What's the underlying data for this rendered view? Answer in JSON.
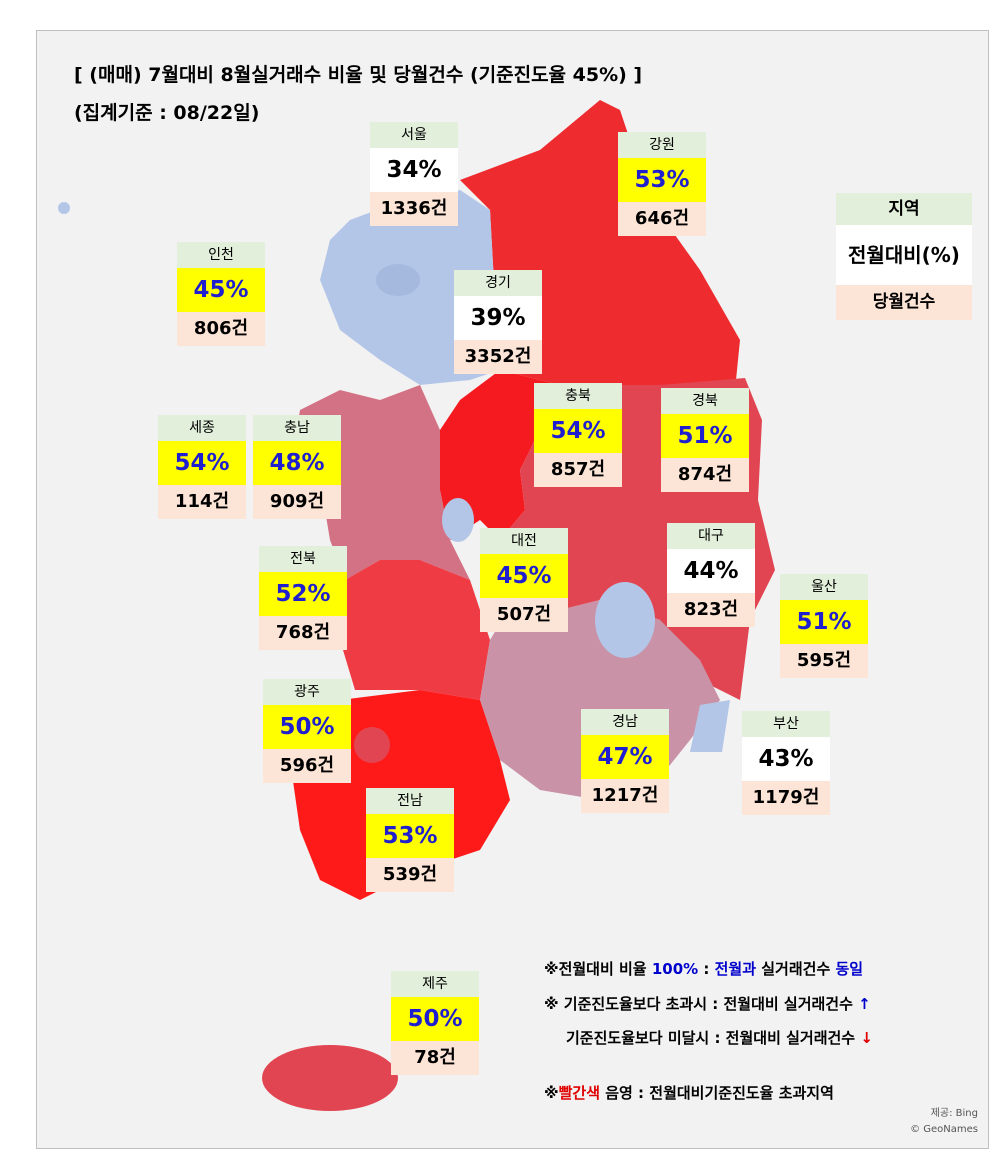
{
  "header": {
    "title": "[ (매매) 7월대비 8월실거래수 비율 및 당월건수 (기준진도율 45%) ]",
    "subtitle": "(집계기준 : 08/22일)"
  },
  "regions": [
    {
      "name": "서울",
      "ratio": "34%",
      "count": "1336건",
      "ratio_bg": "#ffffff"
    },
    {
      "name": "강원",
      "ratio": "53%",
      "count": "646건",
      "ratio_bg": "#ffff00"
    },
    {
      "name": "인천",
      "ratio": "45%",
      "count": "806건",
      "ratio_bg": "#ffff00"
    },
    {
      "name": "경기",
      "ratio": "39%",
      "count": "3352건",
      "ratio_bg": "#ffffff"
    },
    {
      "name": "충북",
      "ratio": "54%",
      "count": "857건",
      "ratio_bg": "#ffff00"
    },
    {
      "name": "경북",
      "ratio": "51%",
      "count": "874건",
      "ratio_bg": "#ffff00"
    },
    {
      "name": "세종",
      "ratio": "54%",
      "count": "114건",
      "ratio_bg": "#ffff00"
    },
    {
      "name": "충남",
      "ratio": "48%",
      "count": "909건",
      "ratio_bg": "#ffff00"
    },
    {
      "name": "전북",
      "ratio": "52%",
      "count": "768건",
      "ratio_bg": "#ffff00"
    },
    {
      "name": "대전",
      "ratio": "45%",
      "count": "507건",
      "ratio_bg": "#ffff00"
    },
    {
      "name": "대구",
      "ratio": "44%",
      "count": "823건",
      "ratio_bg": "#ffffff"
    },
    {
      "name": "울산",
      "ratio": "51%",
      "count": "595건",
      "ratio_bg": "#ffff00"
    },
    {
      "name": "광주",
      "ratio": "50%",
      "count": "596건",
      "ratio_bg": "#ffff00"
    },
    {
      "name": "경남",
      "ratio": "47%",
      "count": "1217건",
      "ratio_bg": "#ffff00"
    },
    {
      "name": "부산",
      "ratio": "43%",
      "count": "1179건",
      "ratio_bg": "#ffffff"
    },
    {
      "name": "전남",
      "ratio": "53%",
      "count": "539건",
      "ratio_bg": "#ffff00"
    },
    {
      "name": "제주",
      "ratio": "50%",
      "count": "78건",
      "ratio_bg": "#ffff00"
    }
  ],
  "legend": {
    "name": "지역",
    "ratio": "전월대비(%)",
    "count": "당월건수"
  },
  "notes": [
    [
      {
        "text": "※전월대비 비율 ",
        "color": "#000000"
      },
      {
        "text": "100%",
        "color": "#0000cc"
      },
      {
        "text": " : ",
        "color": "#000000"
      },
      {
        "text": "전월과",
        "color": "#0000cc"
      },
      {
        "text": " 실거래건수 ",
        "color": "#000000"
      },
      {
        "text": "동일",
        "color": "#0000cc"
      }
    ],
    [
      {
        "text": "※ 기준진도율보다 초과시 : 전월대비 실거래건수 ",
        "color": "#000000"
      },
      {
        "text": "↑",
        "color": "#0000cc"
      }
    ],
    [
      {
        "text": "기준진도율보다 미달시 : 전월대비 실거래건수 ",
        "color": "#000000"
      },
      {
        "text": "↓",
        "color": "#e00000"
      }
    ],
    [
      {
        "text": "※",
        "color": "#000000"
      },
      {
        "text": "빨간색",
        "color": "#e00000"
      },
      {
        "text": " 음영 : 전월대비기준진도율 초과지역",
        "color": "#000000"
      }
    ]
  ],
  "credits": [
    "제공: Bing",
    "© GeoNames"
  ]
}
